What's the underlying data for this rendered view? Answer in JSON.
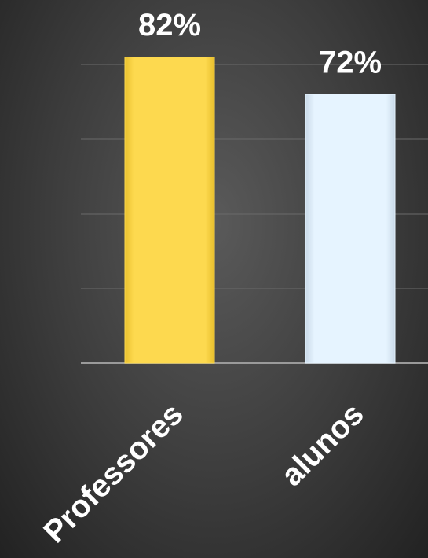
{
  "chart_data": {
    "type": "bar",
    "categories": [
      "Professores",
      "alunos"
    ],
    "values": [
      82,
      72
    ],
    "value_labels": [
      "82%",
      "72%"
    ],
    "colors": [
      "#fdd94f",
      "#e6f4ff"
    ],
    "ylim": [
      0,
      90
    ],
    "yticks": [
      0,
      20,
      40,
      60,
      80
    ],
    "grid": true
  }
}
